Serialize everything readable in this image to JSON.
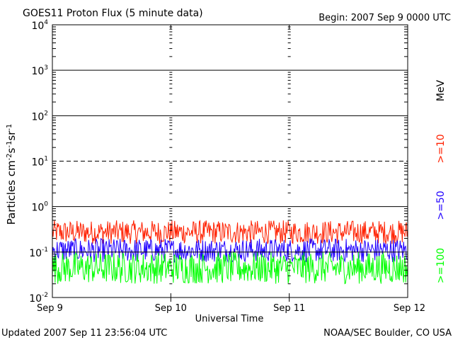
{
  "header": {
    "title": "GOES11 Proton Flux (5 minute data)",
    "begin": "Begin: 2007 Sep 9 0000 UTC"
  },
  "footer": {
    "updated": "Updated 2007 Sep 11 23:56:04 UTC",
    "credit": "NOAA/SEC Boulder, CO USA"
  },
  "chart_data": {
    "type": "line",
    "title": "GOES11 Proton Flux (5 minute data)",
    "xlabel": "Universal Time",
    "ylabel": "Particles cm-2s-1sr-1",
    "yscale": "log",
    "ylim": [
      0.01,
      10000
    ],
    "y_ticks": [
      {
        "value": 0.01,
        "base": "10",
        "exp": "-2"
      },
      {
        "value": 0.1,
        "base": "10",
        "exp": "-1"
      },
      {
        "value": 1,
        "base": "10",
        "exp": "0"
      },
      {
        "value": 10,
        "base": "10",
        "exp": "1"
      },
      {
        "value": 100,
        "base": "10",
        "exp": "2"
      },
      {
        "value": 1000,
        "base": "10",
        "exp": "3"
      },
      {
        "value": 10000,
        "base": "10",
        "exp": "4"
      }
    ],
    "xlim": [
      "Sep 9",
      "Sep 12"
    ],
    "x_ticks": [
      "Sep 9",
      "Sep 10",
      "Sep 11",
      "Sep 12"
    ],
    "thresholds": [
      {
        "value": 10,
        "style": "dashed"
      }
    ],
    "grid": true,
    "legend_unit": "MeV",
    "legend_placement": "right",
    "series": [
      {
        "name": ">=10",
        "color": "#ff2000",
        "typical_range": [
          0.15,
          0.5
        ]
      },
      {
        "name": ">=50",
        "color": "#2000ff",
        "typical_range": [
          0.06,
          0.2
        ]
      },
      {
        "name": ">=100",
        "color": "#00ff00",
        "typical_range": [
          0.02,
          0.1
        ]
      }
    ]
  }
}
